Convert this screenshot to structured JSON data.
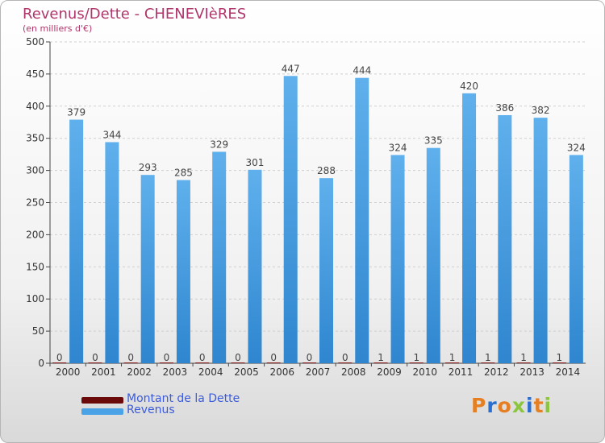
{
  "header": {
    "title": "Revenus/Dette - CHENEVIèRES",
    "subtitle": "(en milliers d'€)"
  },
  "legend": {
    "items": [
      {
        "label": "Montant de la Dette",
        "color": "#6b0a0a"
      },
      {
        "label": "Revenus",
        "color": "#4aa3e6"
      }
    ]
  },
  "logo": {
    "text": "Proxiti",
    "letters": [
      "P",
      "r",
      "o",
      "x",
      "i",
      "t",
      "i"
    ],
    "colors": [
      "#e67e22",
      "#2a6fcf",
      "#e67e22",
      "#8cc63f",
      "#2a6fcf",
      "#e67e22",
      "#8cc63f"
    ]
  },
  "chart_data": {
    "type": "bar",
    "title": "Revenus/Dette - CHENEVIèRES",
    "subtitle": "(en milliers d'€)",
    "categories": [
      "2000",
      "2001",
      "2002",
      "2003",
      "2004",
      "2005",
      "2006",
      "2007",
      "2008",
      "2009",
      "2010",
      "2011",
      "2012",
      "2013",
      "2014"
    ],
    "series": [
      {
        "name": "Montant de la Dette",
        "color": "#8b1a1a",
        "values": [
          0,
          0,
          0,
          0,
          0,
          0,
          0,
          0,
          0,
          1,
          1,
          1,
          1,
          1,
          1
        ]
      },
      {
        "name": "Revenus",
        "color": "#4aa3e6",
        "values": [
          379,
          344,
          293,
          285,
          329,
          301,
          447,
          288,
          444,
          324,
          335,
          420,
          386,
          382,
          324
        ]
      }
    ],
    "ylim": [
      0,
      500
    ],
    "yticks": [
      0,
      50,
      100,
      150,
      200,
      250,
      300,
      350,
      400,
      450,
      500
    ],
    "grid": true,
    "legend": "bottom-left"
  }
}
